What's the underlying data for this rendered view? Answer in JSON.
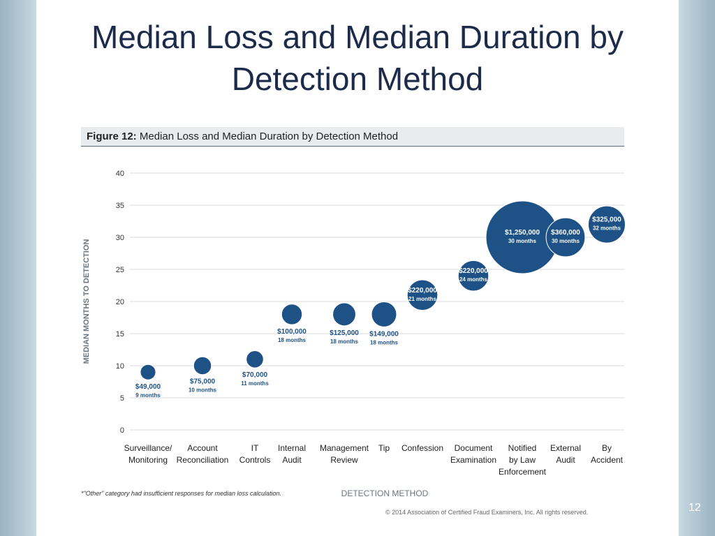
{
  "slide": {
    "title": "Median Loss and Median Duration by Detection Method",
    "page_number": "12"
  },
  "figure": {
    "label": "Figure 12:",
    "title": "Median Loss and Median Duration by Detection Method",
    "footnote": "*\"Other\" category had insufficient responses for median loss calculation.",
    "copyright": "© 2014 Association of Certified Fraud Examiners, Inc. All rights reserved."
  },
  "chart_data": {
    "type": "scatter",
    "bubble": true,
    "xlabel": "DETECTION METHOD",
    "ylabel": "MEDIAN MONTHS TO DETECTION",
    "ylim": [
      0,
      40
    ],
    "yticks": [
      0,
      5,
      10,
      15,
      20,
      25,
      30,
      35,
      40
    ],
    "grid": true,
    "bubble_color": "#1e5287",
    "categories": [
      [
        "Surveillance/",
        "Monitoring"
      ],
      [
        "Account",
        "Reconciliation"
      ],
      [
        "IT",
        "Controls"
      ],
      [
        "Internal",
        "Audit"
      ],
      [
        "Management",
        "Review"
      ],
      [
        "Tip"
      ],
      [
        "Confession"
      ],
      [
        "Document",
        "Examination"
      ],
      [
        "Notified",
        "by Law",
        "Enforcement"
      ],
      [
        "External",
        "Audit"
      ],
      [
        "By",
        "Accident"
      ]
    ],
    "points": [
      {
        "months": 9,
        "loss": 49000,
        "loss_label": "$49,000",
        "months_label": "9 months"
      },
      {
        "months": 10,
        "loss": 75000,
        "loss_label": "$75,000",
        "months_label": "10 months"
      },
      {
        "months": 11,
        "loss": 70000,
        "loss_label": "$70,000",
        "months_label": "11 months"
      },
      {
        "months": 18,
        "loss": 100000,
        "loss_label": "$100,000",
        "months_label": "18 months"
      },
      {
        "months": 18,
        "loss": 125000,
        "loss_label": "$125,000",
        "months_label": "18 months"
      },
      {
        "months": 18,
        "loss": 149000,
        "loss_label": "$149,000",
        "months_label": "18 months"
      },
      {
        "months": 21,
        "loss": 220000,
        "loss_label": "$220,000",
        "months_label": "21 months"
      },
      {
        "months": 24,
        "loss": 220000,
        "loss_label": "$220,000",
        "months_label": "24 months"
      },
      {
        "months": 30,
        "loss": 1250000,
        "loss_label": "$1,250,000",
        "months_label": "30 months"
      },
      {
        "months": 30,
        "loss": 360000,
        "loss_label": "$360,000",
        "months_label": "30 months"
      },
      {
        "months": 32,
        "loss": 325000,
        "loss_label": "$325,000",
        "months_label": "32 months"
      }
    ]
  }
}
